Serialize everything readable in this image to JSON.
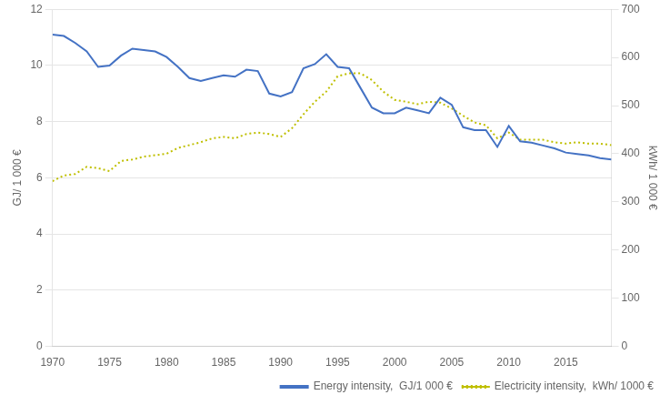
{
  "chart_data": {
    "type": "line",
    "x": [
      1970,
      1971,
      1972,
      1973,
      1974,
      1975,
      1976,
      1977,
      1978,
      1979,
      1980,
      1981,
      1982,
      1983,
      1984,
      1985,
      1986,
      1987,
      1988,
      1989,
      1990,
      1991,
      1992,
      1993,
      1994,
      1995,
      1996,
      1997,
      1998,
      1999,
      2000,
      2001,
      2002,
      2003,
      2004,
      2005,
      2006,
      2007,
      2008,
      2009,
      2010,
      2011,
      2012,
      2013,
      2014,
      2015,
      2016,
      2017,
      2018,
      2019
    ],
    "series": [
      {
        "name": "Energy intensity,  GJ/1 000 €",
        "color": "#4472C4",
        "line_style": "solid",
        "values": [
          11.1,
          11.05,
          10.8,
          10.5,
          9.95,
          10.0,
          10.35,
          10.6,
          10.55,
          10.5,
          10.3,
          9.95,
          9.55,
          9.45,
          9.55,
          9.65,
          9.6,
          9.85,
          9.8,
          9.0,
          8.9,
          9.05,
          9.9,
          10.05,
          10.4,
          9.95,
          9.9,
          9.2,
          8.5,
          8.3,
          8.3,
          8.5,
          8.4,
          8.3,
          8.85,
          8.6,
          7.8,
          7.7,
          7.7,
          7.1,
          7.85,
          7.3,
          7.25,
          7.15,
          7.05,
          6.9,
          6.85,
          6.8,
          6.7,
          6.65
        ]
      },
      {
        "name": "Electricity intensity,  kWh/ 1000 €",
        "color": "#BFBF00",
        "line_style": "dotted",
        "axis": "y2",
        "values": [
          343,
          355,
          358,
          373,
          370,
          364,
          385,
          388,
          394,
          397,
          400,
          412,
          418,
          424,
          432,
          435,
          432,
          441,
          444,
          441,
          435,
          453,
          482,
          508,
          529,
          561,
          567,
          567,
          553,
          529,
          512,
          508,
          503,
          508,
          506,
          494,
          479,
          465,
          459,
          432,
          444,
          429,
          429,
          429,
          424,
          421,
          424,
          421,
          421,
          418
        ]
      }
    ],
    "ylabel": "GJ/ 1 000 €",
    "y2label": "kWh/ 1 000 €",
    "xlim": [
      1970,
      2019
    ],
    "xticks": [
      1970,
      1975,
      1980,
      1985,
      1990,
      1995,
      2000,
      2005,
      2010,
      2015
    ],
    "ylim": [
      0,
      12
    ],
    "yticks": [
      0,
      2,
      4,
      6,
      8,
      10,
      12
    ],
    "y2lim": [
      0,
      700
    ],
    "y2ticks": [
      0,
      100,
      200,
      300,
      400,
      500,
      600,
      700
    ],
    "grid": true,
    "legend": "lower right"
  }
}
